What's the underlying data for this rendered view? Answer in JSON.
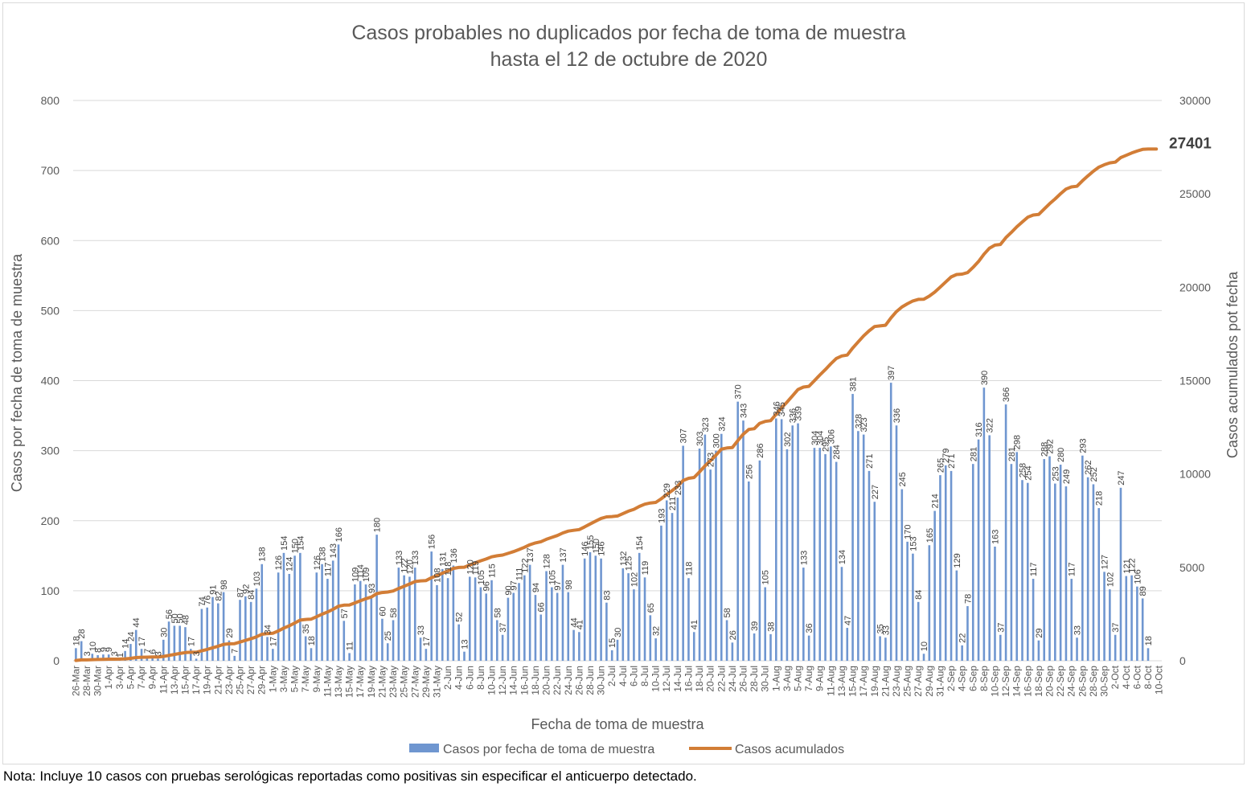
{
  "note": "Nota: Incluye 10 casos con pruebas serológicas reportadas como positivas sin especificar el anticuerpo detectado.",
  "chart_data": {
    "type": "bar",
    "title": [
      "Casos probables no duplicados por fecha de toma de muestra",
      "hasta el 12 de octubre de 2020"
    ],
    "xlabel": "Fecha de toma de muestra",
    "ylabel": "Casos por fecha de toma de muestra",
    "y2label": "Casos acumulados pot fecha",
    "ylim": [
      0,
      800
    ],
    "yticks": [
      0,
      100,
      200,
      300,
      400,
      500,
      600,
      700,
      800
    ],
    "y2lim": [
      0,
      30000
    ],
    "y2ticks": [
      0,
      5000,
      10000,
      15000,
      20000,
      25000,
      30000
    ],
    "grid": "horizontal",
    "legend_position": "bottom",
    "colors": {
      "bars": "#6f96d0",
      "line": "#d27d36",
      "grid": "#d9d9d9",
      "text": "#595959"
    },
    "x_range": [
      "2020-03-26",
      "2020-10-12"
    ],
    "xtick_labels": [
      "26-Mar",
      "28-Mar",
      "30-Mar",
      "1-Apr",
      "3-Apr",
      "5-Apr",
      "7-Apr",
      "9-Apr",
      "11-Apr",
      "13-Apr",
      "15-Apr",
      "17-Apr",
      "19-Apr",
      "21-Apr",
      "23-Apr",
      "25-Apr",
      "27-Apr",
      "29-Apr",
      "1-May",
      "3-May",
      "5-May",
      "7-May",
      "9-May",
      "11-May",
      "13-May",
      "15-May",
      "17-May",
      "19-May",
      "21-May",
      "23-May",
      "25-May",
      "27-May",
      "29-May",
      "31-May",
      "2-Jun",
      "4-Jun",
      "6-Jun",
      "8-Jun",
      "10-Jun",
      "12-Jun",
      "14-Jun",
      "16-Jun",
      "18-Jun",
      "20-Jun",
      "22-Jun",
      "24-Jun",
      "26-Jun",
      "28-Jun",
      "30-Jun",
      "2-Jul",
      "4-Jul",
      "6-Jul",
      "8-Jul",
      "10-Jul",
      "12-Jul",
      "14-Jul",
      "16-Jul",
      "18-Jul",
      "20-Jul",
      "22-Jul",
      "24-Jul",
      "26-Jul",
      "28-Jul",
      "30-Jul",
      "1-Aug",
      "3-Aug",
      "5-Aug",
      "7-Aug",
      "9-Aug",
      "11-Aug",
      "13-Aug",
      "15-Aug",
      "17-Aug",
      "19-Aug",
      "21-Aug",
      "23-Aug",
      "25-Aug",
      "27-Aug",
      "29-Aug",
      "31-Aug",
      "2-Sep",
      "4-Sep",
      "6-Sep",
      "8-Sep",
      "10-Sep",
      "12-Sep",
      "14-Sep",
      "16-Sep",
      "18-Sep",
      "20-Sep",
      "22-Sep",
      "24-Sep",
      "26-Sep",
      "28-Sep",
      "30-Sep",
      "2-Oct",
      "4-Oct",
      "6-Oct",
      "8-Oct",
      "10-Oct"
    ],
    "series": [
      {
        "name": "Casos por fecha de toma de muestra",
        "type": "bar",
        "axis": "left",
        "values": [
          18,
          28,
          3,
          10,
          8,
          9,
          9,
          3,
          1,
          14,
          24,
          44,
          17,
          7,
          6,
          3,
          30,
          56,
          50,
          50,
          48,
          17,
          3,
          74,
          76,
          91,
          82,
          98,
          29,
          7,
          87,
          92,
          84,
          103,
          138,
          34,
          17,
          126,
          154,
          124,
          150,
          154,
          35,
          18,
          126,
          138,
          117,
          143,
          166,
          57,
          11,
          109,
          114,
          109,
          93,
          180,
          60,
          25,
          58,
          133,
          122,
          120,
          133,
          33,
          17,
          156,
          108,
          131,
          118,
          136,
          52,
          13,
          120,
          119,
          105,
          96,
          115,
          58,
          37,
          90,
          97,
          111,
          122,
          137,
          94,
          66,
          128,
          105,
          97,
          137,
          98,
          44,
          41,
          146,
          155,
          150,
          146,
          83,
          15,
          30,
          132,
          125,
          102,
          154,
          119,
          65,
          32,
          193,
          229,
          211,
          233,
          307,
          118,
          41,
          303,
          323,
          273,
          300,
          324,
          58,
          26,
          370,
          343,
          256,
          39,
          286,
          105,
          38,
          346,
          345,
          302,
          336,
          339,
          133,
          36,
          304,
          304,
          295,
          306,
          284,
          134,
          47,
          381,
          328,
          323,
          271,
          227,
          35,
          33,
          397,
          336,
          245,
          170,
          153,
          84,
          10,
          165,
          214,
          265,
          279,
          271,
          129,
          22,
          78,
          281,
          316,
          390,
          322,
          163,
          37,
          366,
          281,
          298,
          258,
          254,
          117,
          29,
          288,
          292,
          253,
          280,
          249,
          117,
          33,
          293,
          262,
          252,
          218,
          127,
          102,
          37,
          247,
          121,
          122,
          106,
          89,
          18
        ]
      },
      {
        "name": "Casos acumulados",
        "type": "line",
        "axis": "right",
        "total_label": "27401"
      }
    ]
  }
}
